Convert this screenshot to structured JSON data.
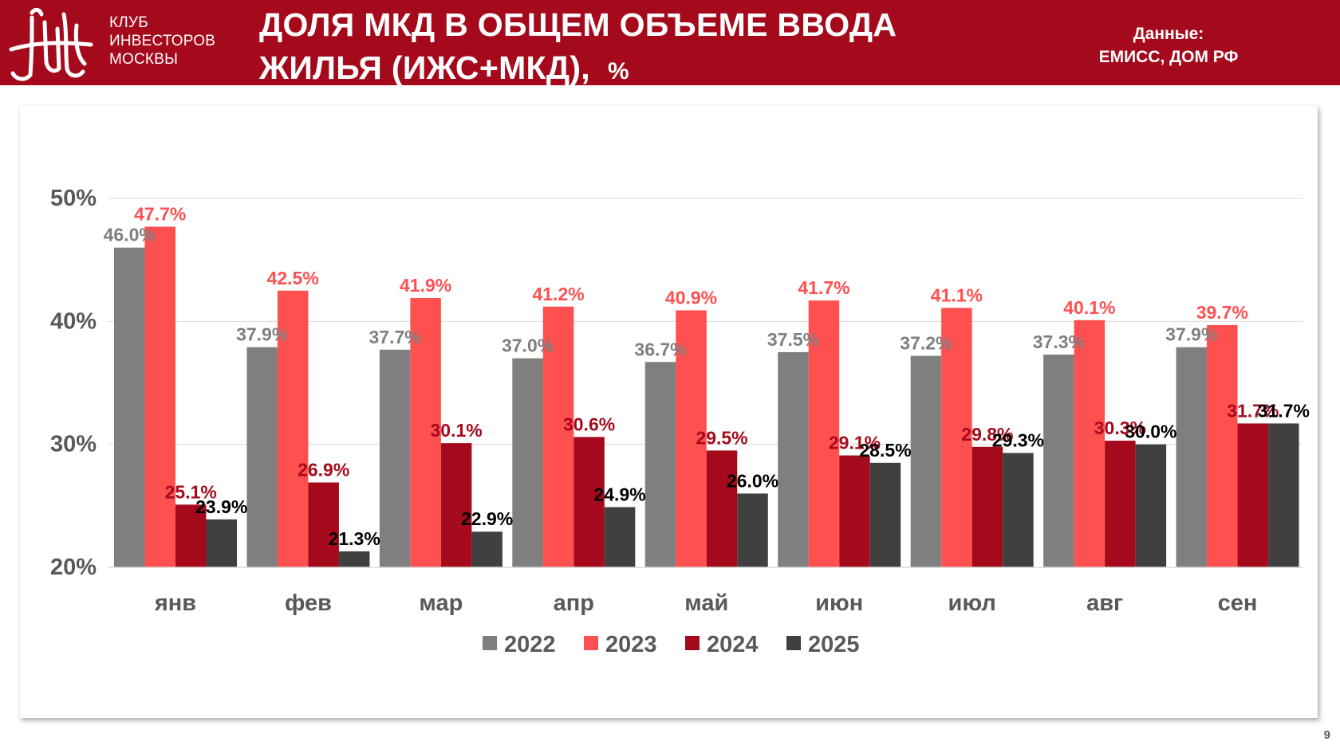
{
  "header": {
    "logo_lines": [
      "КЛУБ",
      "ИНВЕСТОРОВ",
      "МОСКВЫ"
    ],
    "title_line1": "ДОЛЯ МКД В ОБЩЕМ ОБЪЕМЕ ВВОДА",
    "title_line2": "ЖИЛЬЯ (ИЖС+МКД),",
    "title_unit": "%",
    "source_line1": "Данные:",
    "source_line2": "ЕМИСС, ДОМ РФ"
  },
  "colors": {
    "header_bg": "#a50a1c",
    "series": [
      "#7f7f7f",
      "#ff5050",
      "#a50a1c",
      "#404040"
    ],
    "labels": [
      "#7f7f7f",
      "#ff5050",
      "#a50a1c",
      "#000000"
    ],
    "axis_text": "#595959",
    "grid": "#d9d9d9"
  },
  "chart_data": {
    "type": "bar",
    "title": "",
    "xlabel": "",
    "ylabel": "",
    "categories": [
      "янв",
      "фев",
      "мар",
      "апр",
      "май",
      "июн",
      "июл",
      "авг",
      "сен"
    ],
    "ylim": [
      20,
      50
    ],
    "yticks": [
      20,
      30,
      40,
      50
    ],
    "ytick_labels": [
      "20%",
      "30%",
      "40%",
      "50%"
    ],
    "grid": true,
    "legend_position": "bottom",
    "series": [
      {
        "name": "2022",
        "values": [
          46.0,
          37.9,
          37.7,
          37.0,
          36.7,
          37.5,
          37.2,
          37.3,
          37.9
        ],
        "labels": [
          "46.0%",
          "37.9%",
          "37.7%",
          "37.0%",
          "36.7%",
          "37.5%",
          "37.2%",
          "37.3%",
          "37.9%"
        ]
      },
      {
        "name": "2023",
        "values": [
          47.7,
          42.5,
          41.9,
          41.2,
          40.9,
          41.7,
          41.1,
          40.1,
          39.7
        ],
        "labels": [
          "47.7%",
          "42.5%",
          "41.9%",
          "41.2%",
          "40.9%",
          "41.7%",
          "41.1%",
          "40.1%",
          "39.7%"
        ]
      },
      {
        "name": "2024",
        "values": [
          25.1,
          26.9,
          30.1,
          30.6,
          29.5,
          29.1,
          29.8,
          30.3,
          31.7
        ],
        "labels": [
          "25.1%",
          "26.9%",
          "30.1%",
          "30.6%",
          "29.5%",
          "29.1%",
          "29.8%",
          "30.3%",
          "31.7%"
        ]
      },
      {
        "name": "2025",
        "values": [
          23.9,
          21.3,
          22.9,
          24.9,
          26.0,
          28.5,
          29.3,
          30.0,
          31.7
        ],
        "labels": [
          "23.9%",
          "21.3%",
          "22.9%",
          "24.9%",
          "26.0%",
          "28.5%",
          "29.3%",
          "30.0%",
          "31.7%"
        ]
      }
    ]
  },
  "page_number": "9"
}
